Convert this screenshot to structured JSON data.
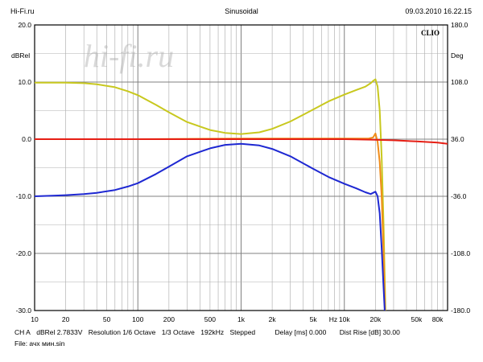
{
  "header": {
    "left": "Hi-Fi.ru",
    "center": "Sinusoidal",
    "right": "09.03.2010 16.22.15"
  },
  "watermark": "hi-fi.ru",
  "logo": "CLIO",
  "status": {
    "channel": "CH A",
    "level": "dBRel 2.7833V",
    "resolution": "Resolution 1/6 Octave",
    "octave": "1/3 Octave",
    "rate": "192kHz",
    "mode": "Stepped",
    "delay": "Delay [ms] 0.000",
    "dist": "Dist Rise [dB] 30.00",
    "file": "File: ачх мин.sin"
  },
  "chart_data": {
    "type": "line",
    "xscale": "log",
    "xlim": [
      10,
      100000
    ],
    "ylim": [
      -30,
      20
    ],
    "y2lim": [
      -180,
      180
    ],
    "ylabel": "dBRel",
    "y2label": "Deg",
    "xlabel": "Hz",
    "grid": true,
    "yticks": [
      "20.0",
      "10.0",
      "0.0",
      "-10.0",
      "-20.0",
      "-30.0"
    ],
    "y2ticks": [
      "180.0",
      "108.0",
      "36.0",
      "-36.0",
      "-108.0",
      "-180.0"
    ],
    "xticks": [
      {
        "v": 10,
        "label": "10"
      },
      {
        "v": 20,
        "label": "20"
      },
      {
        "v": 50,
        "label": "50"
      },
      {
        "v": 100,
        "label": "100"
      },
      {
        "v": 200,
        "label": "200"
      },
      {
        "v": 500,
        "label": "500"
      },
      {
        "v": 1000,
        "label": "1k"
      },
      {
        "v": 2000,
        "label": "2k"
      },
      {
        "v": 5000,
        "label": "5k"
      },
      {
        "v": 10000,
        "label": "10k"
      },
      {
        "v": 20000,
        "label": "20k"
      },
      {
        "v": 50000,
        "label": "50k"
      },
      {
        "v": 80000,
        "label": "80k"
      }
    ],
    "series": [
      {
        "color": "#c8c81e",
        "axis": "left",
        "x": [
          10,
          15,
          20,
          30,
          40,
          60,
          80,
          100,
          150,
          200,
          300,
          500,
          700,
          1000,
          1500,
          2000,
          3000,
          5000,
          7000,
          10000,
          13000,
          16000,
          18000,
          19000,
          20000,
          21000,
          22000,
          23000,
          24000,
          25000
        ],
        "y": [
          9.9,
          9.9,
          9.9,
          9.8,
          9.6,
          9.1,
          8.4,
          7.7,
          6.0,
          4.7,
          3.0,
          1.6,
          1.1,
          0.9,
          1.2,
          1.8,
          3.1,
          5.2,
          6.6,
          7.8,
          8.6,
          9.2,
          9.8,
          10.2,
          10.5,
          9.2,
          5.0,
          -3.0,
          -15.0,
          -30.0
        ]
      },
      {
        "color": "#f08c19",
        "axis": "left",
        "x": [
          10,
          100,
          1000,
          10000,
          17000,
          19000,
          20000,
          21000,
          22000,
          23000,
          24000,
          24800
        ],
        "y": [
          0.0,
          0.0,
          0.1,
          0.1,
          0.1,
          0.3,
          1.0,
          -0.5,
          -4.0,
          -10.0,
          -20.0,
          -30.0
        ]
      },
      {
        "color": "#e61e14",
        "axis": "left",
        "x": [
          10,
          100,
          1000,
          10000,
          20000,
          30000,
          50000,
          80000,
          100000
        ],
        "y": [
          0.0,
          0.0,
          0.0,
          0.0,
          -0.1,
          -0.2,
          -0.4,
          -0.6,
          -0.8
        ]
      },
      {
        "color": "#1e28d2",
        "axis": "left",
        "x": [
          10,
          15,
          20,
          30,
          40,
          60,
          80,
          100,
          150,
          200,
          300,
          500,
          700,
          1000,
          1500,
          2000,
          3000,
          5000,
          7000,
          10000,
          13000,
          16000,
          18000,
          19000,
          20000,
          21000,
          22000,
          23000,
          24000,
          24600
        ],
        "y": [
          -10.0,
          -9.9,
          -9.8,
          -9.6,
          -9.4,
          -8.9,
          -8.3,
          -7.7,
          -6.1,
          -4.8,
          -3.0,
          -1.6,
          -1.0,
          -0.8,
          -1.1,
          -1.7,
          -3.0,
          -5.2,
          -6.6,
          -7.8,
          -8.6,
          -9.3,
          -9.6,
          -9.4,
          -9.2,
          -10.0,
          -13.0,
          -19.0,
          -26.0,
          -30.0
        ]
      }
    ]
  }
}
